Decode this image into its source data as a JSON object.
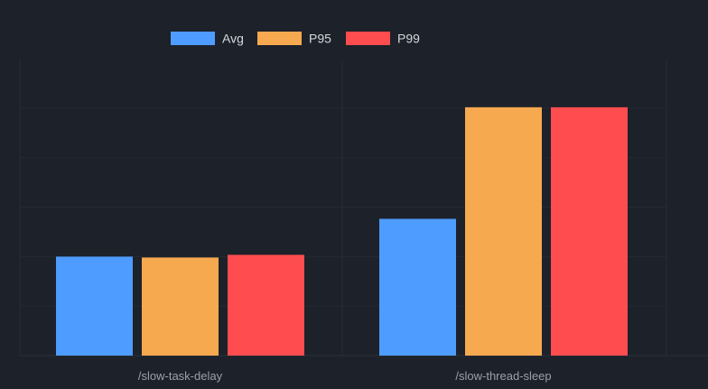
{
  "chart_data": {
    "type": "bar",
    "categories": [
      "/slow-task-delay",
      "/slow-thread-sleep"
    ],
    "series": [
      {
        "name": "Avg",
        "values": [
          110,
          152
        ]
      },
      {
        "name": "P95",
        "values": [
          109,
          276
        ]
      },
      {
        "name": "P99",
        "values": [
          112,
          276
        ]
      }
    ],
    "colors": [
      "#4e9cff",
      "#f7a94f",
      "#ff4d4f"
    ],
    "ylim": [
      0,
      330
    ],
    "grid": true,
    "legend_position": "top-left"
  }
}
